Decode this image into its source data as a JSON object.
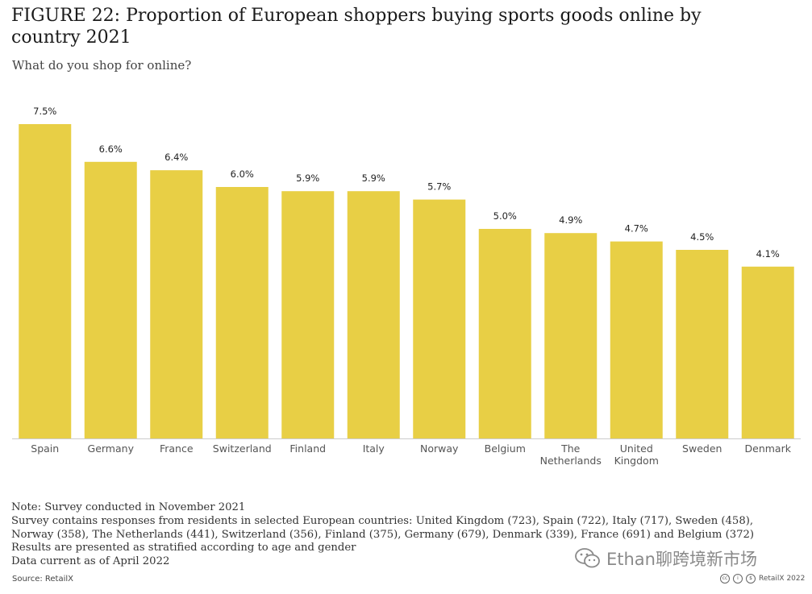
{
  "title": "FIGURE 22: Proportion of European shoppers buying sports goods online by country 2021",
  "subtitle": "What do you shop for online?",
  "colors": {
    "bar": "#E8CF45",
    "baseline": "#cccccc"
  },
  "chart_data": {
    "type": "bar",
    "title": "FIGURE 22: Proportion of European shoppers buying sports goods online by country 2021",
    "subtitle": "What do you shop for online?",
    "xlabel": "",
    "ylabel": "",
    "ylim": [
      0,
      7.5
    ],
    "grid": false,
    "categories": [
      "Spain",
      "Germany",
      "France",
      "Switzerland",
      "Finland",
      "Italy",
      "Norway",
      "Belgium",
      "The Netherlands",
      "United Kingdom",
      "Sweden",
      "Denmark"
    ],
    "category_lines": [
      [
        "Spain"
      ],
      [
        "Germany"
      ],
      [
        "France"
      ],
      [
        "Switzerland"
      ],
      [
        "Finland"
      ],
      [
        "Italy"
      ],
      [
        "Norway"
      ],
      [
        "Belgium"
      ],
      [
        "The",
        "Netherlands"
      ],
      [
        "United",
        "Kingdom"
      ],
      [
        "Sweden"
      ],
      [
        "Denmark"
      ]
    ],
    "values": [
      7.5,
      6.6,
      6.4,
      6.0,
      5.9,
      5.9,
      5.7,
      5.0,
      4.9,
      4.7,
      4.5,
      4.1
    ],
    "value_labels": [
      "7.5%",
      "6.6%",
      "6.4%",
      "6.0%",
      "5.9%",
      "5.9%",
      "5.7%",
      "5.0%",
      "4.9%",
      "4.7%",
      "4.5%",
      "4.1%"
    ],
    "unit": "%"
  },
  "notes": [
    "Note: Survey conducted in November 2021",
    "Survey contains responses from residents in selected European countries: United Kingdom (723), Spain (722), Italy (717), Sweden (458),",
    "Norway (358), The Netherlands (441), Switzerland (356), Finland (375), Germany (679), Denmark (339), France (691) and Belgium (372)",
    "Results are presented as stratified according to age and gender",
    "Data current as of April 2022"
  ],
  "source": "Source: RetailX",
  "watermark": {
    "text": "Ethan聊跨境新市场",
    "icon": "wechat-icon"
  },
  "copyright": {
    "text": "RetailX 2022",
    "icons": [
      "cc-icon",
      "by-icon",
      "nc-icon"
    ]
  }
}
